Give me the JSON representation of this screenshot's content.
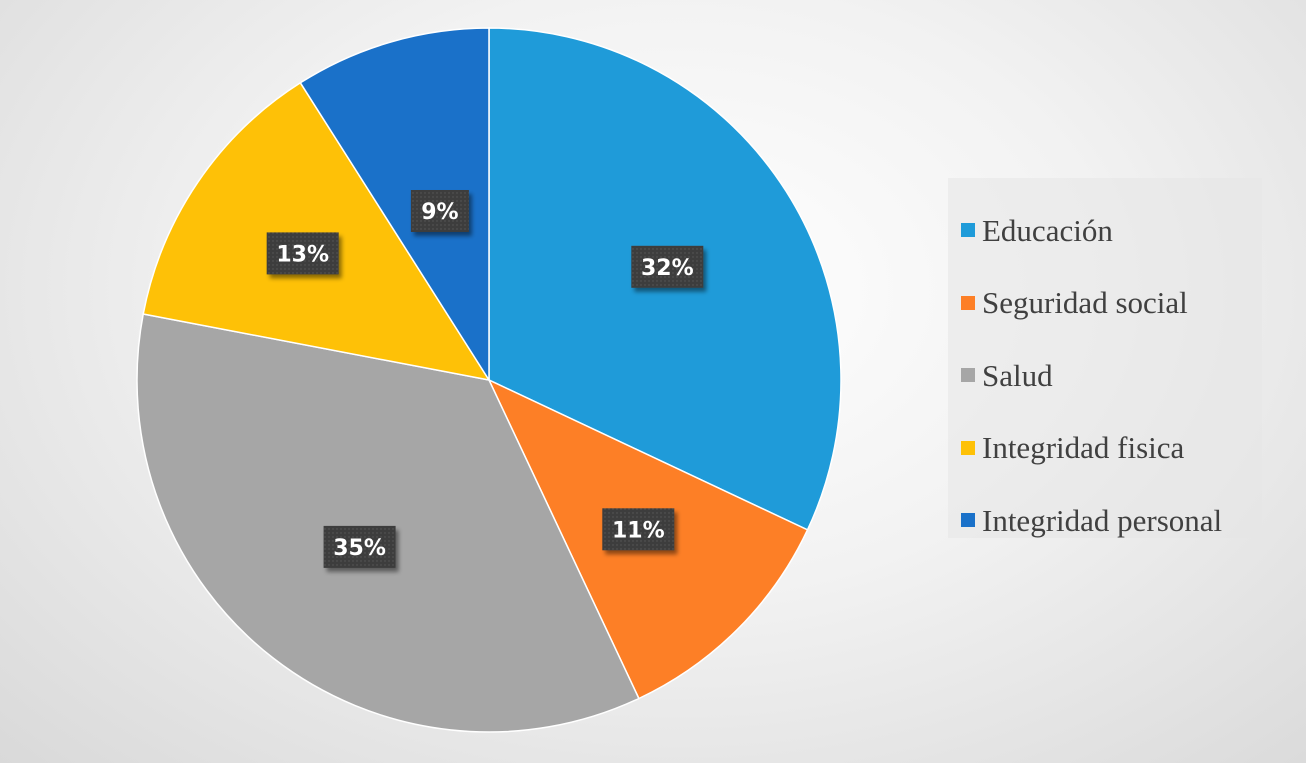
{
  "chart_data": {
    "type": "pie",
    "categories": [
      "Educación",
      "Seguridad social",
      "Salud",
      "Integridad fisica",
      "Integridad personal"
    ],
    "values": [
      32,
      11,
      35,
      13,
      9
    ],
    "labels": [
      "32%",
      "11%",
      "35%",
      "13%",
      "9%"
    ],
    "colors": [
      "#1f9bd9",
      "#fd7f26",
      "#a6a6a6",
      "#fec107",
      "#1a71c9"
    ],
    "title": "",
    "legend_position": "right"
  }
}
